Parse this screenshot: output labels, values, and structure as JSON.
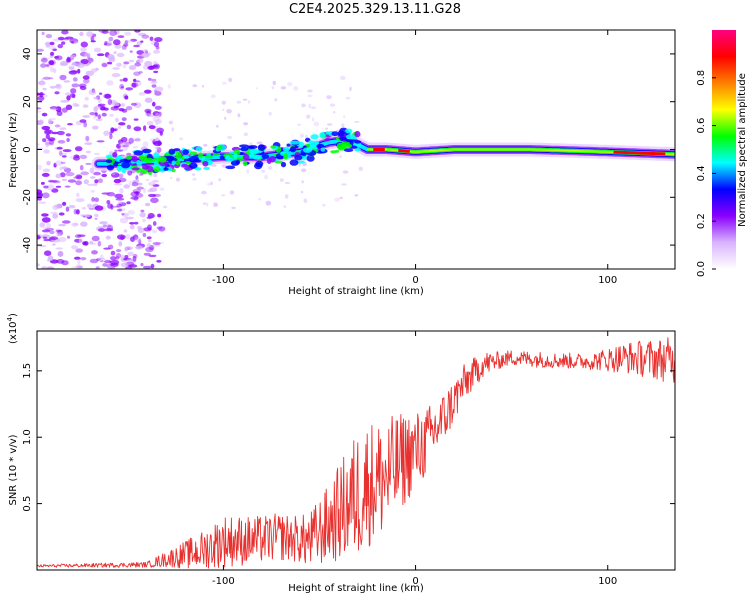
{
  "title": "C2E4.2025.329.13.11.G28",
  "chart_data": [
    {
      "type": "heatmap",
      "name": "spectrogram",
      "xlabel": "Height of straight line (km)",
      "ylabel": "Frequency (Hz)",
      "xlim": [
        -197,
        135
      ],
      "ylim": [
        -50,
        50
      ],
      "xticks": [
        -100,
        0,
        100
      ],
      "xtick_labels": [
        "-100",
        "0",
        "100"
      ],
      "yticks": [
        -40,
        -20,
        0,
        20,
        40
      ],
      "ytick_labels": [
        "-40",
        "-20",
        "0",
        "20",
        "40"
      ],
      "colorbar": {
        "label": "Normalized spectral amplitude",
        "range": [
          0,
          1
        ],
        "ticks": [
          0.0,
          0.2,
          0.4,
          0.6,
          0.8
        ],
        "tick_labels": [
          "0.0",
          "0.2",
          "0.4",
          "0.6",
          "0.8"
        ],
        "colors": [
          "#ffffff",
          "#d9b3ff",
          "#8a00ff",
          "#0000ff",
          "#00ffff",
          "#00ff00",
          "#ffff00",
          "#ff7f00",
          "#ff0000",
          "#ff0080"
        ]
      },
      "ridge": {
        "x": [
          -160,
          -140,
          -120,
          -100,
          -80,
          -60,
          -45,
          -35,
          -25,
          -15,
          0,
          20,
          60,
          100,
          135
        ],
        "freq": [
          -6,
          -5,
          -4,
          -3,
          -3,
          -1,
          3,
          4,
          0,
          0,
          -1,
          0,
          0,
          -1,
          -2
        ]
      }
    },
    {
      "type": "line",
      "name": "snr",
      "xlabel": "Height of straight line (km)",
      "ylabel": "SNR (10 * v/v)",
      "y_multiplier_label": "(x10",
      "y_multiplier_exp": "4",
      "y_multiplier_close": ")",
      "xlim": [
        -197,
        135
      ],
      "ylim": [
        0,
        1.8
      ],
      "xticks": [
        -100,
        0,
        100
      ],
      "xtick_labels": [
        "-100",
        "0",
        "100"
      ],
      "yticks": [
        0.5,
        1.0,
        1.5
      ],
      "ytick_labels": [
        "0.5",
        "1.0",
        "1.5"
      ],
      "color": "#e8312f",
      "trend": {
        "x": [
          -197,
          -140,
          -130,
          -110,
          -100,
          -85,
          -70,
          -55,
          -45,
          -35,
          -25,
          -15,
          -5,
          5,
          15,
          25,
          35,
          50,
          70,
          90,
          110,
          135
        ],
        "y": [
          0.03,
          0.04,
          0.08,
          0.15,
          0.22,
          0.22,
          0.25,
          0.22,
          0.35,
          0.5,
          0.65,
          0.7,
          0.85,
          0.95,
          1.15,
          1.4,
          1.55,
          1.6,
          1.58,
          1.57,
          1.6,
          1.58
        ]
      },
      "noise": {
        "x": [
          -197,
          -140,
          -125,
          -100,
          -80,
          -60,
          -45,
          -30,
          -15,
          0,
          15,
          30,
          45,
          90,
          110,
          135
        ],
        "amp": [
          0.01,
          0.02,
          0.08,
          0.2,
          0.18,
          0.18,
          0.3,
          0.5,
          0.45,
          0.3,
          0.2,
          0.12,
          0.06,
          0.06,
          0.12,
          0.18
        ]
      }
    }
  ]
}
